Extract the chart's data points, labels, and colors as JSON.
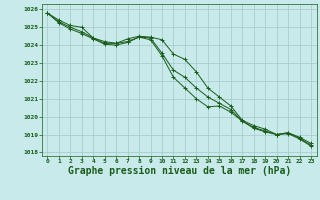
{
  "background_color": "#c8eaea",
  "grid_color": "#a0c8c8",
  "line_color": "#1a5c1a",
  "xlabel": "Graphe pression niveau de la mer (hPa)",
  "xlabel_fontsize": 7,
  "ylim": [
    1017.8,
    1026.3
  ],
  "xlim": [
    -0.5,
    23.5
  ],
  "yticks": [
    1018,
    1019,
    1020,
    1021,
    1022,
    1023,
    1024,
    1025,
    1026
  ],
  "xticks": [
    0,
    1,
    2,
    3,
    4,
    5,
    6,
    7,
    8,
    9,
    10,
    11,
    12,
    13,
    14,
    15,
    16,
    17,
    18,
    19,
    20,
    21,
    22,
    23
  ],
  "series1": [
    1025.8,
    1025.4,
    1025.1,
    1025.0,
    1024.4,
    1024.2,
    1024.1,
    1024.35,
    1024.5,
    1024.45,
    1024.3,
    1023.5,
    1023.2,
    1022.5,
    1021.6,
    1021.1,
    1020.6,
    1019.8,
    1019.5,
    1019.3,
    1019.0,
    1019.1,
    1018.85,
    1018.5
  ],
  "series2": [
    1025.8,
    1025.3,
    1025.0,
    1024.75,
    1024.4,
    1024.1,
    1024.1,
    1024.2,
    1024.45,
    1024.4,
    1023.55,
    1022.6,
    1022.2,
    1021.6,
    1021.1,
    1020.75,
    1020.4,
    1019.75,
    1019.4,
    1019.2,
    1019.0,
    1019.1,
    1018.8,
    1018.4
  ],
  "series3": [
    1025.8,
    1025.25,
    1024.9,
    1024.65,
    1024.35,
    1024.05,
    1024.0,
    1024.15,
    1024.45,
    1024.3,
    1023.4,
    1022.2,
    1021.6,
    1021.0,
    1020.55,
    1020.6,
    1020.25,
    1019.75,
    1019.35,
    1019.15,
    1019.0,
    1019.05,
    1018.75,
    1018.35
  ]
}
